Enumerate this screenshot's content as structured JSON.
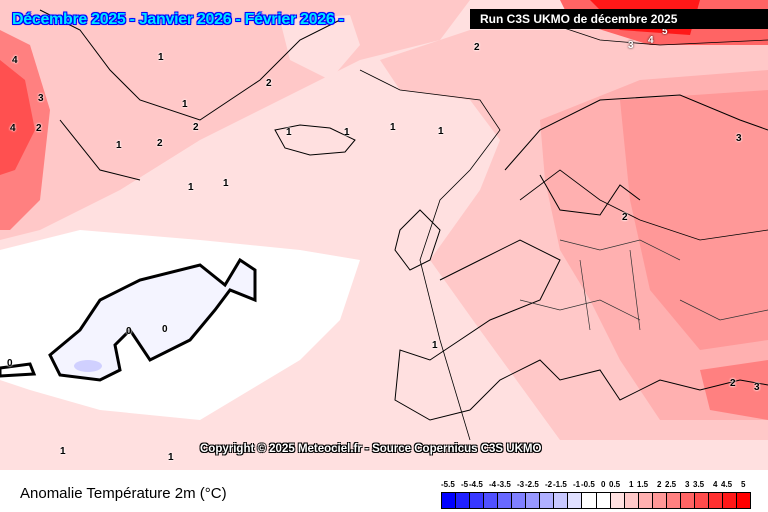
{
  "header": {
    "title": "Décembre 2025 - Janvier 2026 - Février 2026 -",
    "run_label": "Run C3S UKMO de décembre 2025"
  },
  "map": {
    "copyright": "Copyright © 2025 Meteociel.fr - Source Copernicus C3S UKMO",
    "contour_labels": [
      "4",
      "3",
      "4",
      "2",
      "1",
      "1",
      "2",
      "2",
      "2",
      "1",
      "1",
      "1",
      "1",
      "1",
      "1",
      "2",
      "1",
      "3",
      "2",
      "0",
      "0",
      "0",
      "1",
      "2",
      "3",
      "3",
      "4",
      "5",
      "1",
      "1"
    ]
  },
  "footer": {
    "title": "Anomalie Température 2m (°C)"
  },
  "legend": {
    "labels": [
      "-5.5",
      "-5",
      "-4.5",
      "-4",
      "-3.5",
      "-3",
      "-2.5",
      "-2",
      "-1.5",
      "-1",
      "-0.5",
      "0",
      "0.5",
      "1",
      "1.5",
      "2",
      "2.5",
      "3",
      "3.5",
      "4",
      "4.5",
      "5"
    ],
    "colors": [
      "#0000ff",
      "#2020ff",
      "#3838ff",
      "#5050ff",
      "#6868ff",
      "#8080ff",
      "#9898ff",
      "#b0b0ff",
      "#c8c8ff",
      "#e0e0ff",
      "#ffffff",
      "#ffffff",
      "#ffe0e0",
      "#ffc8c8",
      "#ffb0b0",
      "#ff9898",
      "#ff8080",
      "#ff6464",
      "#ff4c4c",
      "#ff3030",
      "#ff1818",
      "#ff0000"
    ]
  }
}
